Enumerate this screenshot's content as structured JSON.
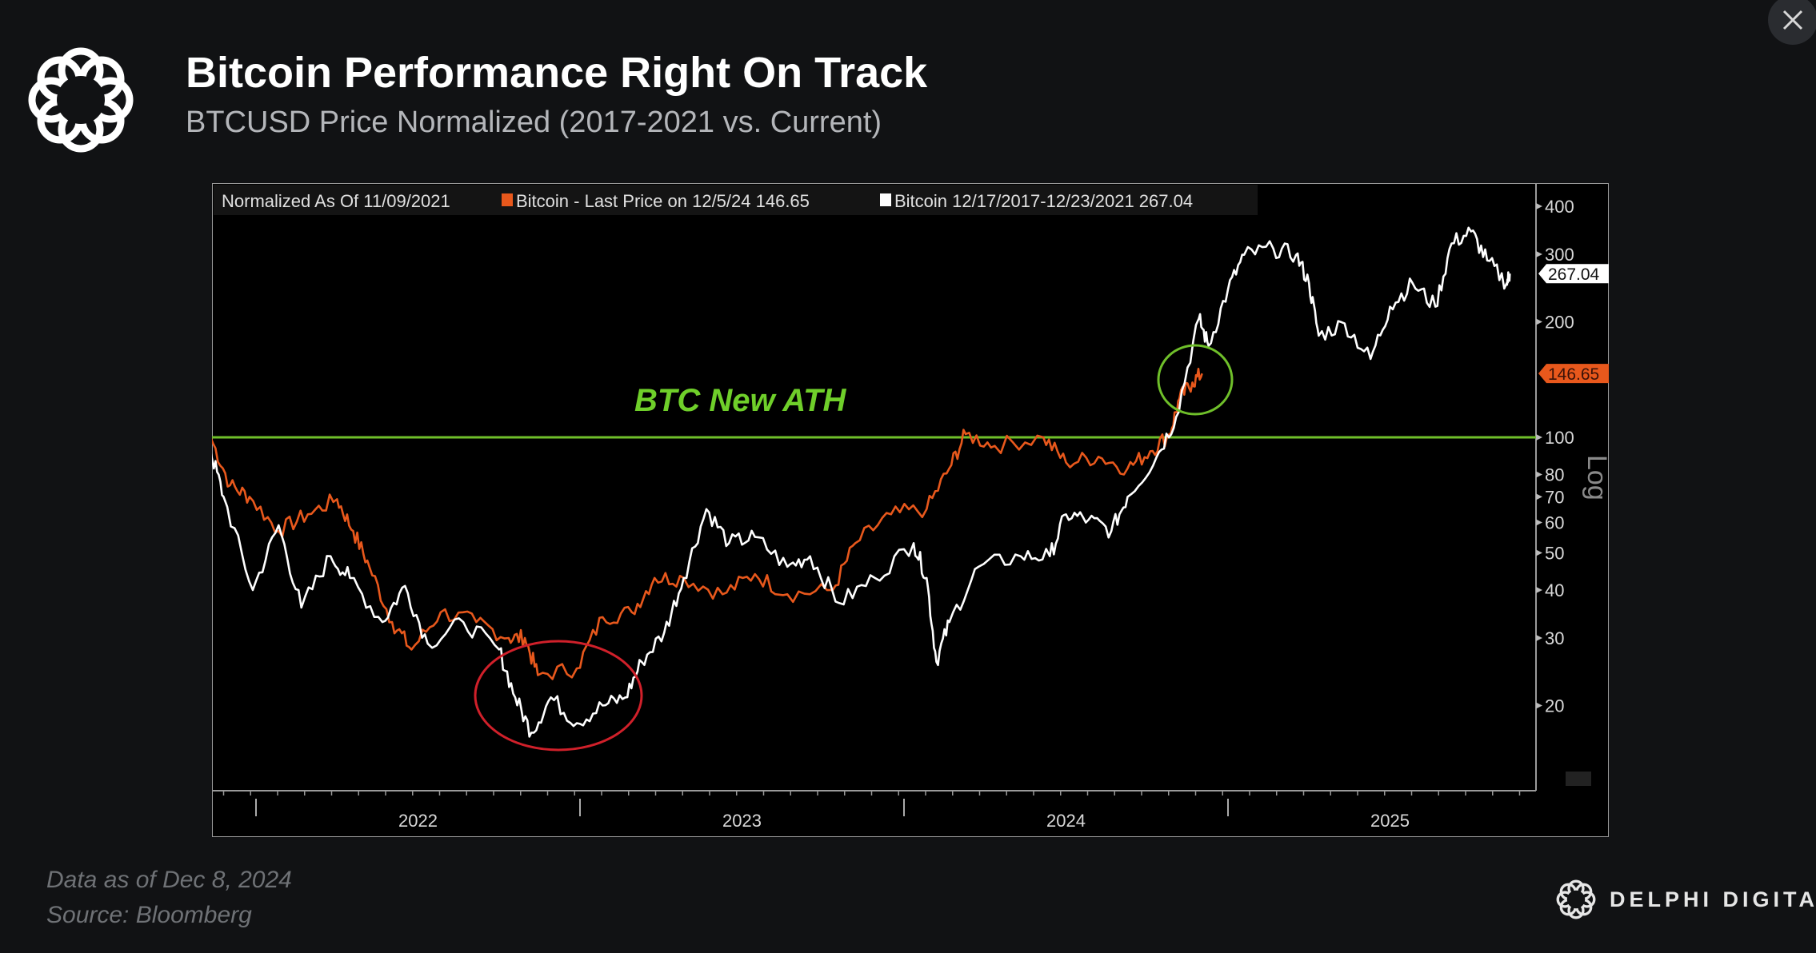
{
  "header": {
    "title": "Bitcoin Performance Right On Track",
    "subtitle": "BTCUSD Price Normalized (2017-2021 vs. Current)"
  },
  "footer": {
    "data_as_of": "Data as of Dec 8, 2024",
    "source": "Source: Bloomberg",
    "brand": "DELPHI DIGITAL"
  },
  "colors": {
    "background": "#111214",
    "orange": "#e8581c",
    "white": "#ffffff",
    "ath_line": "#6fbf2a",
    "red_circle": "#d0202a"
  },
  "chart_data": {
    "type": "line",
    "title": "BTCUSD Price Normalized (2017-2021 vs. Current)",
    "legend": {
      "header": "Normalized As Of 11/09/2021",
      "placement": "top-left"
    },
    "yscale": "log",
    "ylabel": "Log",
    "ylim": [
      14,
      450
    ],
    "yticks": [
      400,
      300,
      200,
      100,
      80,
      70,
      60,
      50,
      40,
      30,
      20
    ],
    "xlim": [
      2021.86,
      2025.98
    ],
    "xticks": [
      "2022",
      "2023",
      "2024",
      "2025"
    ],
    "reference_line": {
      "value": 100
    },
    "annotations": [
      {
        "text": "BTC New ATH",
        "x": 2023.5,
        "y": 120
      },
      {
        "type": "circle",
        "color": "green",
        "x": 2024.9,
        "y": 140
      },
      {
        "type": "ellipse",
        "color": "red",
        "x": 2022.93,
        "y": 21
      }
    ],
    "series": [
      {
        "name": "Bitcoin - Last Price on 12/5/24 146.65",
        "last_value": "146.65",
        "color": "#e8581c",
        "points": [
          [
            2021.86,
            100
          ],
          [
            2021.92,
            75
          ],
          [
            2021.98,
            70
          ],
          [
            2022.07,
            57
          ],
          [
            2022.16,
            63
          ],
          [
            2022.25,
            69
          ],
          [
            2022.3,
            57
          ],
          [
            2022.35,
            46
          ],
          [
            2022.42,
            33
          ],
          [
            2022.48,
            28
          ],
          [
            2022.57,
            35
          ],
          [
            2022.68,
            33
          ],
          [
            2022.78,
            30
          ],
          [
            2022.83,
            30
          ],
          [
            2022.87,
            24
          ],
          [
            2022.99,
            25
          ],
          [
            2023.07,
            34
          ],
          [
            2023.16,
            35
          ],
          [
            2023.23,
            43
          ],
          [
            2023.32,
            43
          ],
          [
            2023.44,
            39
          ],
          [
            2023.54,
            44
          ],
          [
            2023.64,
            39
          ],
          [
            2023.78,
            40
          ],
          [
            2023.85,
            53
          ],
          [
            2023.96,
            63
          ],
          [
            2024.07,
            65
          ],
          [
            2024.14,
            83
          ],
          [
            2024.19,
            102
          ],
          [
            2024.28,
            95
          ],
          [
            2024.43,
            100
          ],
          [
            2024.5,
            86
          ],
          [
            2024.6,
            89
          ],
          [
            2024.69,
            83
          ],
          [
            2024.76,
            92
          ],
          [
            2024.82,
            102
          ],
          [
            2024.85,
            126
          ],
          [
            2024.89,
            139
          ],
          [
            2024.92,
            146.65
          ]
        ]
      },
      {
        "name": "Bitcoin 12/17/2017-12/23/2021 267.04",
        "last_value": "267.04",
        "color": "#ffffff",
        "points": [
          [
            2021.86,
            92
          ],
          [
            2021.9,
            70
          ],
          [
            2021.99,
            40
          ],
          [
            2022.07,
            59
          ],
          [
            2022.14,
            36
          ],
          [
            2022.23,
            49
          ],
          [
            2022.29,
            43
          ],
          [
            2022.39,
            33
          ],
          [
            2022.46,
            41
          ],
          [
            2022.53,
            29
          ],
          [
            2022.64,
            33
          ],
          [
            2022.75,
            28
          ],
          [
            2022.8,
            21
          ],
          [
            2022.85,
            17
          ],
          [
            2022.91,
            21
          ],
          [
            2022.99,
            18
          ],
          [
            2023.07,
            20
          ],
          [
            2023.14,
            21
          ],
          [
            2023.19,
            26
          ],
          [
            2023.26,
            31
          ],
          [
            2023.32,
            43
          ],
          [
            2023.39,
            65
          ],
          [
            2023.46,
            53
          ],
          [
            2023.54,
            55
          ],
          [
            2023.64,
            46
          ],
          [
            2023.71,
            49
          ],
          [
            2023.8,
            37
          ],
          [
            2023.91,
            43
          ],
          [
            2024.03,
            53
          ],
          [
            2024.07,
            43
          ],
          [
            2024.1,
            26
          ],
          [
            2024.14,
            33
          ],
          [
            2024.23,
            46
          ],
          [
            2024.36,
            49
          ],
          [
            2024.45,
            49
          ],
          [
            2024.5,
            63
          ],
          [
            2024.57,
            61
          ],
          [
            2024.64,
            57
          ],
          [
            2024.69,
            70
          ],
          [
            2024.78,
            89
          ],
          [
            2024.84,
            113
          ],
          [
            2024.91,
            204
          ],
          [
            2024.94,
            173
          ],
          [
            2025.0,
            243
          ],
          [
            2025.05,
            299
          ],
          [
            2025.14,
            310
          ],
          [
            2025.21,
            299
          ],
          [
            2025.25,
            252
          ],
          [
            2025.28,
            184
          ],
          [
            2025.36,
            198
          ],
          [
            2025.44,
            160
          ],
          [
            2025.5,
            219
          ],
          [
            2025.57,
            252
          ],
          [
            2025.64,
            219
          ],
          [
            2025.69,
            320
          ],
          [
            2025.75,
            344
          ],
          [
            2025.8,
            289
          ],
          [
            2025.86,
            252
          ],
          [
            2025.87,
            267.04
          ]
        ]
      }
    ]
  }
}
